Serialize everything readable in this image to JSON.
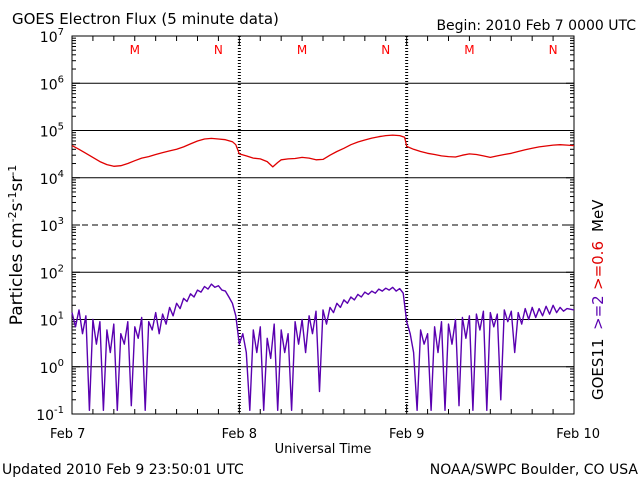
{
  "header": {
    "title": "GOES Electron Flux (5 minute data)",
    "begin": "Begin: 2010 Feb 7 0000 UTC"
  },
  "footer": {
    "updated": "Updated 2010 Feb  9 23:50:01 UTC",
    "source": "NOAA/SWPC Boulder, CO USA"
  },
  "chart_data": {
    "type": "line",
    "title": "GOES Electron Flux (5 minute data)",
    "xlabel": "Universal Time",
    "ylabel": "Particles cm-2 s-1 sr-1",
    "yscale": "log",
    "ylim": [
      0.1,
      10000000
    ],
    "xlim": [
      0,
      72
    ],
    "x_unit": "hours since 2010 Feb 7 0000 UTC",
    "x_ticks": [
      {
        "value": 0,
        "label": "Feb 7"
      },
      {
        "value": 24,
        "label": "Feb 8"
      },
      {
        "value": 48,
        "label": "Feb 9"
      },
      {
        "value": 72,
        "label": "Feb 10"
      }
    ],
    "y_ticks": [
      {
        "exp": -1,
        "label": "10",
        "sup": "-1"
      },
      {
        "exp": 0,
        "label": "10",
        "sup": "0"
      },
      {
        "exp": 1,
        "label": "10",
        "sup": "1"
      },
      {
        "exp": 2,
        "label": "10",
        "sup": "2"
      },
      {
        "exp": 3,
        "label": "10",
        "sup": "3"
      },
      {
        "exp": 4,
        "label": "10",
        "sup": "4"
      },
      {
        "exp": 5,
        "label": "10",
        "sup": "5"
      },
      {
        "exp": 6,
        "label": "10",
        "sup": "6"
      },
      {
        "exp": 7,
        "label": "10",
        "sup": "7"
      }
    ],
    "threshold_line": {
      "value": 1000,
      "style": "dashed"
    },
    "satellite": "GOES11",
    "markers": [
      {
        "x": 9,
        "label": "M"
      },
      {
        "x": 21,
        "label": "N"
      },
      {
        "x": 33,
        "label": "M"
      },
      {
        "x": 45,
        "label": "N"
      },
      {
        "x": 57,
        "label": "M"
      },
      {
        "x": 69,
        "label": "N"
      }
    ],
    "marker_color": "#ff0000",
    "series": [
      {
        "name": ">=0.6 MeV",
        "color": "#e00000",
        "points": [
          [
            0,
            48000
          ],
          [
            1,
            40000
          ],
          [
            2,
            33000
          ],
          [
            3,
            27000
          ],
          [
            4,
            22000
          ],
          [
            5,
            19000
          ],
          [
            6,
            17500
          ],
          [
            7,
            18000
          ],
          [
            8,
            20000
          ],
          [
            9,
            23000
          ],
          [
            10,
            26000
          ],
          [
            11,
            28000
          ],
          [
            12,
            31000
          ],
          [
            13,
            34000
          ],
          [
            14,
            37000
          ],
          [
            15,
            40000
          ],
          [
            16,
            45000
          ],
          [
            17,
            52000
          ],
          [
            18,
            60000
          ],
          [
            19,
            66000
          ],
          [
            20,
            68000
          ],
          [
            21,
            66000
          ],
          [
            22,
            64000
          ],
          [
            23,
            58000
          ],
          [
            23.5,
            50000
          ],
          [
            24,
            32000
          ],
          [
            25,
            29000
          ],
          [
            26,
            26000
          ],
          [
            27,
            25000
          ],
          [
            28,
            22000
          ],
          [
            28.8,
            17000
          ],
          [
            29.5,
            21000
          ],
          [
            30,
            24000
          ],
          [
            31,
            25000
          ],
          [
            32,
            25500
          ],
          [
            33,
            27000
          ],
          [
            34,
            26000
          ],
          [
            35,
            24000
          ],
          [
            36,
            24500
          ],
          [
            37,
            30000
          ],
          [
            38,
            36000
          ],
          [
            39,
            42000
          ],
          [
            40,
            50000
          ],
          [
            41,
            57000
          ],
          [
            42,
            63000
          ],
          [
            43,
            69000
          ],
          [
            44,
            74000
          ],
          [
            45,
            78000
          ],
          [
            46,
            80000
          ],
          [
            47,
            78000
          ],
          [
            47.7,
            72000
          ],
          [
            48,
            46000
          ],
          [
            49,
            40000
          ],
          [
            50,
            36000
          ],
          [
            51,
            33000
          ],
          [
            52,
            31000
          ],
          [
            53,
            29000
          ],
          [
            54,
            28000
          ],
          [
            55,
            27500
          ],
          [
            56,
            30000
          ],
          [
            57,
            32000
          ],
          [
            58,
            31000
          ],
          [
            59,
            29000
          ],
          [
            60,
            27000
          ],
          [
            61,
            29000
          ],
          [
            62,
            31000
          ],
          [
            63,
            33000
          ],
          [
            64,
            36000
          ],
          [
            65,
            39000
          ],
          [
            66,
            42000
          ],
          [
            67,
            45000
          ],
          [
            68,
            47000
          ],
          [
            69,
            49000
          ],
          [
            70,
            50000
          ],
          [
            71,
            49000
          ],
          [
            72,
            48000
          ]
        ]
      },
      {
        "name": ">=2 MeV",
        "color": "#5a00b0",
        "points": [
          [
            0,
            14
          ],
          [
            0.5,
            7
          ],
          [
            1,
            16
          ],
          [
            1.5,
            5
          ],
          [
            2,
            12
          ],
          [
            2.5,
            0.12
          ],
          [
            3,
            10
          ],
          [
            3.5,
            3
          ],
          [
            4,
            9
          ],
          [
            4.5,
            0.12
          ],
          [
            5,
            6
          ],
          [
            5.5,
            2
          ],
          [
            6,
            8
          ],
          [
            6.5,
            0.12
          ],
          [
            7,
            5
          ],
          [
            7.5,
            3
          ],
          [
            8,
            9
          ],
          [
            8.5,
            0.15
          ],
          [
            9,
            7
          ],
          [
            9.5,
            4
          ],
          [
            10,
            11
          ],
          [
            10.5,
            0.12
          ],
          [
            11,
            9
          ],
          [
            11.5,
            6
          ],
          [
            12,
            14
          ],
          [
            12.5,
            5
          ],
          [
            13,
            13
          ],
          [
            13.5,
            8
          ],
          [
            14,
            18
          ],
          [
            14.5,
            12
          ],
          [
            15,
            22
          ],
          [
            15.5,
            17
          ],
          [
            16,
            28
          ],
          [
            16.5,
            24
          ],
          [
            17,
            35
          ],
          [
            17.5,
            30
          ],
          [
            18,
            42
          ],
          [
            18.5,
            38
          ],
          [
            19,
            50
          ],
          [
            19.5,
            44
          ],
          [
            20,
            56
          ],
          [
            20.5,
            48
          ],
          [
            21,
            52
          ],
          [
            21.5,
            42
          ],
          [
            22,
            40
          ],
          [
            22.5,
            30
          ],
          [
            23,
            22
          ],
          [
            23.5,
            12
          ],
          [
            24,
            3
          ],
          [
            24.5,
            5
          ],
          [
            25,
            2
          ],
          [
            25.5,
            0.12
          ],
          [
            26,
            6
          ],
          [
            26.5,
            2
          ],
          [
            27,
            7
          ],
          [
            27.5,
            0.12
          ],
          [
            28,
            4
          ],
          [
            28.5,
            1.5
          ],
          [
            29,
            8
          ],
          [
            29.5,
            0.12
          ],
          [
            30,
            6
          ],
          [
            30.5,
            2
          ],
          [
            31,
            5
          ],
          [
            31.5,
            0.12
          ],
          [
            32,
            9
          ],
          [
            32.5,
            3
          ],
          [
            33,
            10
          ],
          [
            33.5,
            2
          ],
          [
            34,
            12
          ],
          [
            34.5,
            5
          ],
          [
            35,
            15
          ],
          [
            35.5,
            0.3
          ],
          [
            36,
            16
          ],
          [
            36.5,
            8
          ],
          [
            37,
            18
          ],
          [
            37.5,
            14
          ],
          [
            38,
            22
          ],
          [
            38.5,
            18
          ],
          [
            39,
            26
          ],
          [
            39.5,
            22
          ],
          [
            40,
            30
          ],
          [
            40.5,
            26
          ],
          [
            41,
            34
          ],
          [
            41.5,
            30
          ],
          [
            42,
            38
          ],
          [
            42.5,
            34
          ],
          [
            43,
            40
          ],
          [
            43.5,
            36
          ],
          [
            44,
            44
          ],
          [
            44.5,
            40
          ],
          [
            45,
            46
          ],
          [
            45.5,
            42
          ],
          [
            46,
            48
          ],
          [
            46.5,
            40
          ],
          [
            47,
            45
          ],
          [
            47.5,
            36
          ],
          [
            48,
            9
          ],
          [
            48.5,
            5
          ],
          [
            49,
            2
          ],
          [
            49.5,
            0.12
          ],
          [
            50,
            6
          ],
          [
            50.5,
            3
          ],
          [
            51,
            5
          ],
          [
            51.5,
            0.12
          ],
          [
            52,
            7
          ],
          [
            52.5,
            2
          ],
          [
            53,
            9
          ],
          [
            53.5,
            0.12
          ],
          [
            54,
            8
          ],
          [
            54.5,
            3
          ],
          [
            55,
            10
          ],
          [
            55.5,
            0.15
          ],
          [
            56,
            11
          ],
          [
            56.5,
            4
          ],
          [
            57,
            12
          ],
          [
            57.5,
            0.12
          ],
          [
            58,
            13
          ],
          [
            58.5,
            6
          ],
          [
            59,
            15
          ],
          [
            59.5,
            0.12
          ],
          [
            60,
            14
          ],
          [
            60.5,
            7
          ],
          [
            61,
            13
          ],
          [
            61.5,
            0.2
          ],
          [
            62,
            16
          ],
          [
            62.5,
            9
          ],
          [
            63,
            15
          ],
          [
            63.5,
            2
          ],
          [
            64,
            14
          ],
          [
            64.5,
            8
          ],
          [
            65,
            17
          ],
          [
            65.5,
            10
          ],
          [
            66,
            18
          ],
          [
            66.5,
            11
          ],
          [
            67,
            17
          ],
          [
            67.5,
            12
          ],
          [
            68,
            19
          ],
          [
            68.5,
            13
          ],
          [
            69,
            20
          ],
          [
            69.5,
            14
          ],
          [
            70,
            18
          ],
          [
            70.5,
            15
          ],
          [
            71,
            17
          ],
          [
            72,
            16
          ]
        ]
      }
    ],
    "right_labels": {
      "satellite": "GOES11",
      "series_1": ">=2",
      "series_2": ">=0.6",
      "unit": "MeV"
    }
  }
}
